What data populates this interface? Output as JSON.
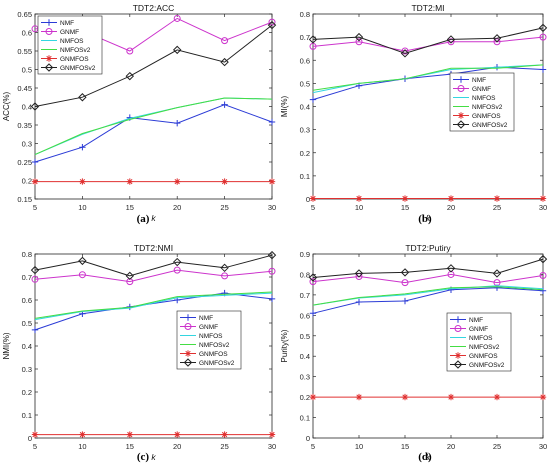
{
  "figure": {
    "captions": [
      "(a)",
      "(b)",
      "(c)",
      "(d)"
    ]
  },
  "legend_markers": {
    "NMF": "plus",
    "GNMF": "circle",
    "NMFOS": "none",
    "NMFOSv2": "none",
    "GNMFOS": "star",
    "GNMFOSv2": "diamond"
  },
  "colors": {
    "NMF": "#2b3bd6",
    "GNMF": "#cc33cc",
    "NMFOS": "#33d6e0",
    "NMFOSv2": "#44dd44",
    "GNMFOS": "#e03030",
    "GNMFOSv2": "#222222"
  },
  "chart_data": [
    {
      "type": "line",
      "title": "TDT2:ACC",
      "xlabel": "k",
      "ylabel": "ACC(%)",
      "x": [
        5,
        10,
        15,
        20,
        25,
        30
      ],
      "xlim": [
        5,
        30
      ],
      "ylim": [
        0.15,
        0.65
      ],
      "yticks": [
        "0.15",
        "0.2",
        "0.25",
        "0.3",
        "0.35",
        "0.4",
        "0.45",
        "0.5",
        "0.55",
        "0.6",
        "0.65"
      ],
      "xticks": [
        "5",
        "10",
        "15",
        "20",
        "25",
        "30"
      ],
      "legend_position": "top-left",
      "series": [
        {
          "name": "NMF",
          "values": [
            0.25,
            0.29,
            0.37,
            0.355,
            0.405,
            0.358
          ]
        },
        {
          "name": "GNMF",
          "values": [
            0.61,
            0.605,
            0.55,
            0.638,
            0.578,
            0.628
          ]
        },
        {
          "name": "NMFOS",
          "values": [
            0.27,
            0.325,
            0.368,
            0.397,
            0.423,
            0.42
          ]
        },
        {
          "name": "NMFOSv2",
          "values": [
            0.27,
            0.327,
            0.365,
            0.397,
            0.423,
            0.42
          ]
        },
        {
          "name": "GNMFOS",
          "values": [
            0.197,
            0.197,
            0.197,
            0.197,
            0.197,
            0.197
          ]
        },
        {
          "name": "GNMFOSv2",
          "values": [
            0.4,
            0.425,
            0.482,
            0.553,
            0.52,
            0.62
          ]
        }
      ]
    },
    {
      "type": "line",
      "title": "TDT2:MI",
      "xlabel": "k",
      "ylabel": "MI(%)",
      "x": [
        5,
        10,
        15,
        20,
        25,
        30
      ],
      "xlim": [
        5,
        30
      ],
      "ylim": [
        0,
        0.8
      ],
      "yticks": [
        "0",
        "0.1",
        "0.2",
        "0.3",
        "0.4",
        "0.5",
        "0.6",
        "0.7",
        "0.8"
      ],
      "xticks": [
        "5",
        "10",
        "15",
        "20",
        "25",
        "30"
      ],
      "legend_position": "right",
      "series": [
        {
          "name": "NMF",
          "values": [
            0.43,
            0.49,
            0.52,
            0.54,
            0.57,
            0.56
          ]
        },
        {
          "name": "GNMF",
          "values": [
            0.66,
            0.68,
            0.64,
            0.68,
            0.68,
            0.7
          ]
        },
        {
          "name": "NMFOS",
          "values": [
            0.46,
            0.5,
            0.52,
            0.56,
            0.57,
            0.58
          ]
        },
        {
          "name": "NMFOSv2",
          "values": [
            0.47,
            0.5,
            0.52,
            0.565,
            0.565,
            0.58
          ]
        },
        {
          "name": "GNMFOS",
          "values": [
            0.002,
            0.002,
            0.002,
            0.002,
            0.002,
            0.002
          ]
        },
        {
          "name": "GNMFOSv2",
          "values": [
            0.69,
            0.7,
            0.63,
            0.69,
            0.695,
            0.74
          ]
        }
      ]
    },
    {
      "type": "line",
      "title": "TDT2:NMI",
      "xlabel": "k",
      "ylabel": "NMI(%)",
      "x": [
        5,
        10,
        15,
        20,
        25,
        30
      ],
      "xlim": [
        5,
        30
      ],
      "ylim": [
        0,
        0.8
      ],
      "yticks": [
        "0",
        "0.1",
        "0.2",
        "0.3",
        "0.4",
        "0.5",
        "0.6",
        "0.7",
        "0.8"
      ],
      "xticks": [
        "5",
        "10",
        "15",
        "20",
        "25",
        "30"
      ],
      "legend_position": "right",
      "series": [
        {
          "name": "NMF",
          "values": [
            0.47,
            0.54,
            0.57,
            0.6,
            0.63,
            0.605
          ]
        },
        {
          "name": "GNMF",
          "values": [
            0.69,
            0.71,
            0.68,
            0.73,
            0.705,
            0.725
          ]
        },
        {
          "name": "NMFOS",
          "values": [
            0.515,
            0.55,
            0.565,
            0.61,
            0.62,
            0.63
          ]
        },
        {
          "name": "NMFOSv2",
          "values": [
            0.52,
            0.552,
            0.568,
            0.615,
            0.625,
            0.635
          ]
        },
        {
          "name": "GNMFOS",
          "values": [
            0.015,
            0.015,
            0.015,
            0.015,
            0.015,
            0.015
          ]
        },
        {
          "name": "GNMFOSv2",
          "values": [
            0.73,
            0.77,
            0.705,
            0.765,
            0.74,
            0.795
          ]
        }
      ]
    },
    {
      "type": "line",
      "title": "TDT2:Putiry",
      "xlabel": "k",
      "ylabel": "Purity(%)",
      "x": [
        5,
        10,
        15,
        20,
        25,
        30
      ],
      "xlim": [
        5,
        30
      ],
      "ylim": [
        0,
        0.9
      ],
      "yticks": [
        "0",
        "0.1",
        "0.2",
        "0.3",
        "0.4",
        "0.5",
        "0.6",
        "0.7",
        "0.8",
        "0.9"
      ],
      "xticks": [
        "5",
        "10",
        "15",
        "20",
        "25",
        "30"
      ],
      "legend_position": "right",
      "series": [
        {
          "name": "NMF",
          "values": [
            0.61,
            0.665,
            0.67,
            0.725,
            0.735,
            0.72
          ]
        },
        {
          "name": "GNMF",
          "values": [
            0.765,
            0.79,
            0.76,
            0.8,
            0.76,
            0.795
          ]
        },
        {
          "name": "NMFOS",
          "values": [
            0.65,
            0.685,
            0.7,
            0.73,
            0.745,
            0.73
          ]
        },
        {
          "name": "NMFOSv2",
          "values": [
            0.65,
            0.687,
            0.705,
            0.735,
            0.74,
            0.725
          ]
        },
        {
          "name": "GNMFOS",
          "values": [
            0.2,
            0.2,
            0.2,
            0.2,
            0.2,
            0.2
          ]
        },
        {
          "name": "GNMFOSv2",
          "values": [
            0.785,
            0.805,
            0.81,
            0.83,
            0.805,
            0.875
          ]
        }
      ]
    }
  ]
}
